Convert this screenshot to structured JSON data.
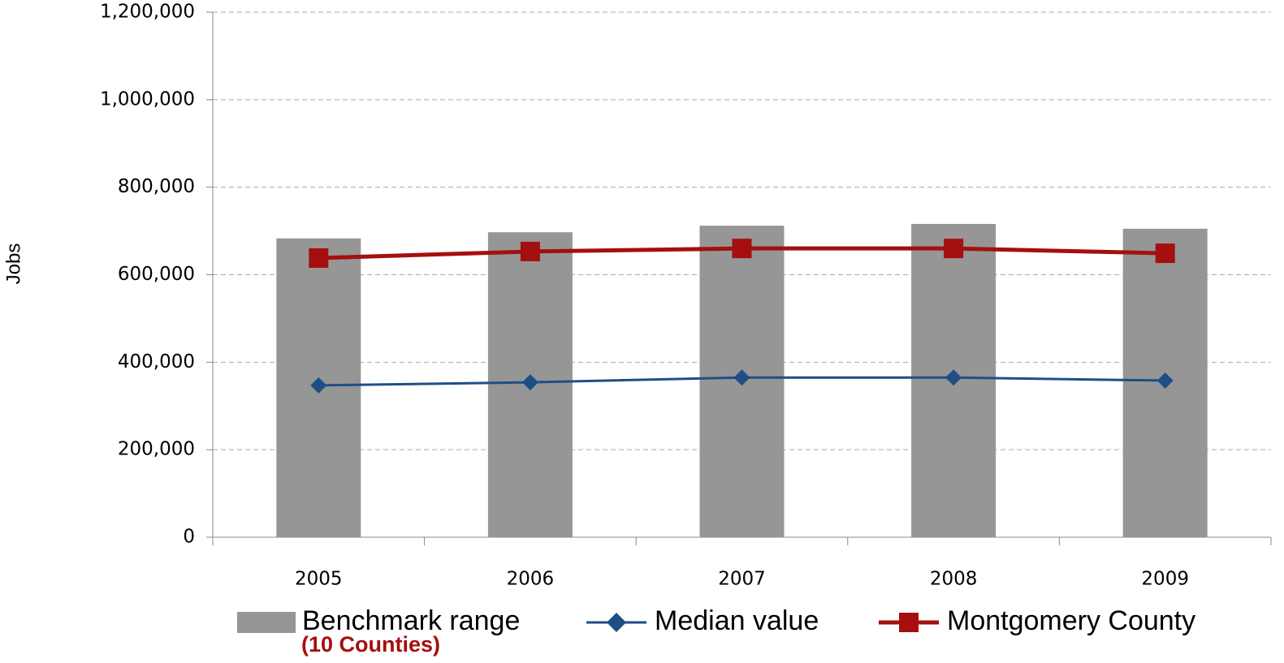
{
  "chart_data": {
    "type": "bar_line",
    "y_label": "Jobs",
    "categories": [
      "2005",
      "2006",
      "2007",
      "2008",
      "2009"
    ],
    "series": [
      {
        "name": "Benchmark range",
        "kind": "bar",
        "color": "#969696",
        "values": [
          683000,
          697000,
          712000,
          716000,
          705000
        ]
      },
      {
        "name": "Median value",
        "kind": "line",
        "marker": "diamond",
        "color": "#1f4e87",
        "values": [
          347000,
          354000,
          365000,
          365000,
          358000
        ]
      },
      {
        "name": "Montgomery County",
        "kind": "line",
        "marker": "square",
        "color": "#a50f0f",
        "values": [
          638000,
          653000,
          660000,
          660000,
          649000
        ]
      }
    ],
    "legend_note": "(10 Counties)",
    "ylim": [
      0,
      1200000
    ],
    "yticks": [
      0,
      {
        "value": 200000,
        "label": "200,000"
      },
      {
        "value": 400000,
        "label": "400,000"
      },
      {
        "value": 600000,
        "label": "600,000"
      },
      {
        "value": 800000,
        "label": "800,000"
      },
      {
        "value": 1000000,
        "label": "1,000,000"
      },
      {
        "value": 1200000,
        "label": "1,200,000"
      }
    ],
    "grid": true
  }
}
